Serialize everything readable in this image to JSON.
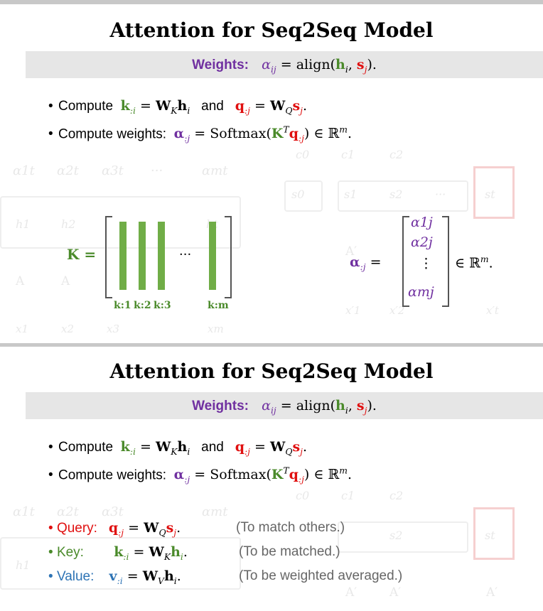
{
  "slide1": {
    "title": "Attention for Seq2Seq Model",
    "weights_label": "Weights:",
    "bullet1_prefix": "Compute",
    "bullet1_and": "and",
    "bullet2_prefix": "Compute weights:",
    "k_eq": "K =",
    "dots": "···",
    "col_labels": [
      "k:1",
      "k:2",
      "k:3",
      "k:m"
    ],
    "alpha_entries": [
      "α1j",
      "α2j",
      "⋮",
      "αmj"
    ]
  },
  "slide2": {
    "title": "Attention for Seq2Seq Model",
    "weights_label": "Weights:",
    "bullet1_prefix": "Compute",
    "bullet1_and": "and",
    "bullet2_prefix": "Compute weights:",
    "query_label": "Query:",
    "query_note": "(To match others.)",
    "key_label": "Key:",
    "key_note": "(To be matched.)",
    "value_label": "Value:",
    "value_note": "(To be weighted averaged.)"
  },
  "background_diagram": {
    "top_labels": [
      "α1t",
      "α2t",
      "α3t",
      "···",
      "αmt"
    ],
    "c_labels": [
      "c0",
      "c1",
      "c2"
    ],
    "s_labels": [
      "s0",
      "s1",
      "s2",
      "···",
      "st"
    ],
    "h_labels": [
      "h1",
      "h2",
      "ht"
    ],
    "a_labels": [
      "A",
      "A",
      "A′",
      "A′",
      "A′"
    ],
    "x_labels": [
      "x1",
      "x2",
      "x3",
      "xm",
      "x′1",
      "x′2",
      "x′t"
    ]
  },
  "colors": {
    "purple": "#7030a0",
    "green": "#4a8a2a",
    "red": "#e01010",
    "blue": "#2e74b5",
    "bar_green": "#70ad47",
    "gray_bar": "#e6e6e6"
  }
}
